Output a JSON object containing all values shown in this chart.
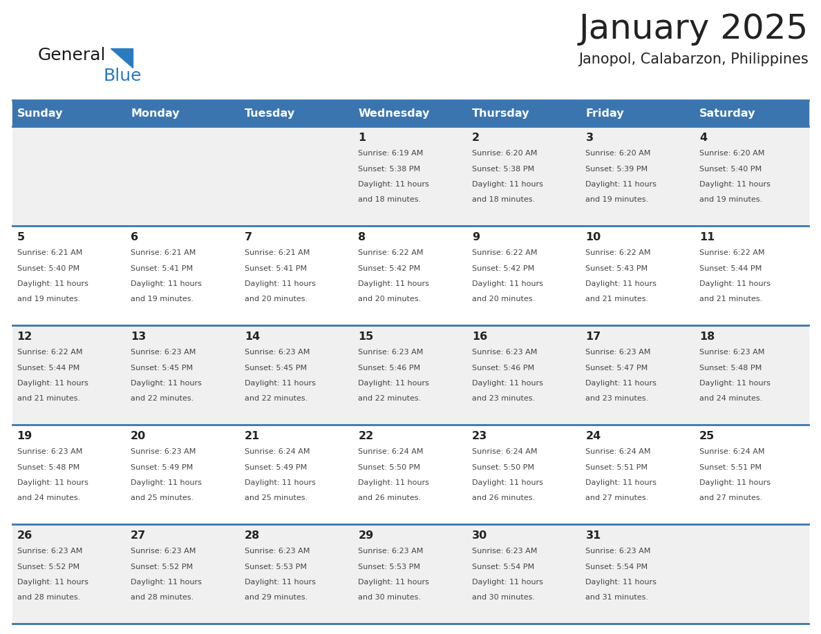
{
  "title": "January 2025",
  "subtitle": "Janopol, Calabarzon, Philippines",
  "header_bg": "#3a75b0",
  "header_text_color": "#ffffff",
  "day_names": [
    "Sunday",
    "Monday",
    "Tuesday",
    "Wednesday",
    "Thursday",
    "Friday",
    "Saturday"
  ],
  "row_bg_even": "#f0f0f0",
  "row_bg_odd": "#ffffff",
  "cell_text_color": "#444444",
  "day_num_color": "#222222",
  "divider_color": "#3a75b0",
  "logo_general_color": "#1a1a1a",
  "logo_blue_color": "#2a7abf",
  "days": [
    {
      "day": 1,
      "col": 3,
      "row": 0,
      "sunrise": "6:19 AM",
      "sunset": "5:38 PM",
      "daylight_hrs": 11,
      "daylight_min": 18
    },
    {
      "day": 2,
      "col": 4,
      "row": 0,
      "sunrise": "6:20 AM",
      "sunset": "5:38 PM",
      "daylight_hrs": 11,
      "daylight_min": 18
    },
    {
      "day": 3,
      "col": 5,
      "row": 0,
      "sunrise": "6:20 AM",
      "sunset": "5:39 PM",
      "daylight_hrs": 11,
      "daylight_min": 19
    },
    {
      "day": 4,
      "col": 6,
      "row": 0,
      "sunrise": "6:20 AM",
      "sunset": "5:40 PM",
      "daylight_hrs": 11,
      "daylight_min": 19
    },
    {
      "day": 5,
      "col": 0,
      "row": 1,
      "sunrise": "6:21 AM",
      "sunset": "5:40 PM",
      "daylight_hrs": 11,
      "daylight_min": 19
    },
    {
      "day": 6,
      "col": 1,
      "row": 1,
      "sunrise": "6:21 AM",
      "sunset": "5:41 PM",
      "daylight_hrs": 11,
      "daylight_min": 19
    },
    {
      "day": 7,
      "col": 2,
      "row": 1,
      "sunrise": "6:21 AM",
      "sunset": "5:41 PM",
      "daylight_hrs": 11,
      "daylight_min": 20
    },
    {
      "day": 8,
      "col": 3,
      "row": 1,
      "sunrise": "6:22 AM",
      "sunset": "5:42 PM",
      "daylight_hrs": 11,
      "daylight_min": 20
    },
    {
      "day": 9,
      "col": 4,
      "row": 1,
      "sunrise": "6:22 AM",
      "sunset": "5:42 PM",
      "daylight_hrs": 11,
      "daylight_min": 20
    },
    {
      "day": 10,
      "col": 5,
      "row": 1,
      "sunrise": "6:22 AM",
      "sunset": "5:43 PM",
      "daylight_hrs": 11,
      "daylight_min": 21
    },
    {
      "day": 11,
      "col": 6,
      "row": 1,
      "sunrise": "6:22 AM",
      "sunset": "5:44 PM",
      "daylight_hrs": 11,
      "daylight_min": 21
    },
    {
      "day": 12,
      "col": 0,
      "row": 2,
      "sunrise": "6:22 AM",
      "sunset": "5:44 PM",
      "daylight_hrs": 11,
      "daylight_min": 21
    },
    {
      "day": 13,
      "col": 1,
      "row": 2,
      "sunrise": "6:23 AM",
      "sunset": "5:45 PM",
      "daylight_hrs": 11,
      "daylight_min": 22
    },
    {
      "day": 14,
      "col": 2,
      "row": 2,
      "sunrise": "6:23 AM",
      "sunset": "5:45 PM",
      "daylight_hrs": 11,
      "daylight_min": 22
    },
    {
      "day": 15,
      "col": 3,
      "row": 2,
      "sunrise": "6:23 AM",
      "sunset": "5:46 PM",
      "daylight_hrs": 11,
      "daylight_min": 22
    },
    {
      "day": 16,
      "col": 4,
      "row": 2,
      "sunrise": "6:23 AM",
      "sunset": "5:46 PM",
      "daylight_hrs": 11,
      "daylight_min": 23
    },
    {
      "day": 17,
      "col": 5,
      "row": 2,
      "sunrise": "6:23 AM",
      "sunset": "5:47 PM",
      "daylight_hrs": 11,
      "daylight_min": 23
    },
    {
      "day": 18,
      "col": 6,
      "row": 2,
      "sunrise": "6:23 AM",
      "sunset": "5:48 PM",
      "daylight_hrs": 11,
      "daylight_min": 24
    },
    {
      "day": 19,
      "col": 0,
      "row": 3,
      "sunrise": "6:23 AM",
      "sunset": "5:48 PM",
      "daylight_hrs": 11,
      "daylight_min": 24
    },
    {
      "day": 20,
      "col": 1,
      "row": 3,
      "sunrise": "6:23 AM",
      "sunset": "5:49 PM",
      "daylight_hrs": 11,
      "daylight_min": 25
    },
    {
      "day": 21,
      "col": 2,
      "row": 3,
      "sunrise": "6:24 AM",
      "sunset": "5:49 PM",
      "daylight_hrs": 11,
      "daylight_min": 25
    },
    {
      "day": 22,
      "col": 3,
      "row": 3,
      "sunrise": "6:24 AM",
      "sunset": "5:50 PM",
      "daylight_hrs": 11,
      "daylight_min": 26
    },
    {
      "day": 23,
      "col": 4,
      "row": 3,
      "sunrise": "6:24 AM",
      "sunset": "5:50 PM",
      "daylight_hrs": 11,
      "daylight_min": 26
    },
    {
      "day": 24,
      "col": 5,
      "row": 3,
      "sunrise": "6:24 AM",
      "sunset": "5:51 PM",
      "daylight_hrs": 11,
      "daylight_min": 27
    },
    {
      "day": 25,
      "col": 6,
      "row": 3,
      "sunrise": "6:24 AM",
      "sunset": "5:51 PM",
      "daylight_hrs": 11,
      "daylight_min": 27
    },
    {
      "day": 26,
      "col": 0,
      "row": 4,
      "sunrise": "6:23 AM",
      "sunset": "5:52 PM",
      "daylight_hrs": 11,
      "daylight_min": 28
    },
    {
      "day": 27,
      "col": 1,
      "row": 4,
      "sunrise": "6:23 AM",
      "sunset": "5:52 PM",
      "daylight_hrs": 11,
      "daylight_min": 28
    },
    {
      "day": 28,
      "col": 2,
      "row": 4,
      "sunrise": "6:23 AM",
      "sunset": "5:53 PM",
      "daylight_hrs": 11,
      "daylight_min": 29
    },
    {
      "day": 29,
      "col": 3,
      "row": 4,
      "sunrise": "6:23 AM",
      "sunset": "5:53 PM",
      "daylight_hrs": 11,
      "daylight_min": 30
    },
    {
      "day": 30,
      "col": 4,
      "row": 4,
      "sunrise": "6:23 AM",
      "sunset": "5:54 PM",
      "daylight_hrs": 11,
      "daylight_min": 30
    },
    {
      "day": 31,
      "col": 5,
      "row": 4,
      "sunrise": "6:23 AM",
      "sunset": "5:54 PM",
      "daylight_hrs": 11,
      "daylight_min": 31
    }
  ]
}
